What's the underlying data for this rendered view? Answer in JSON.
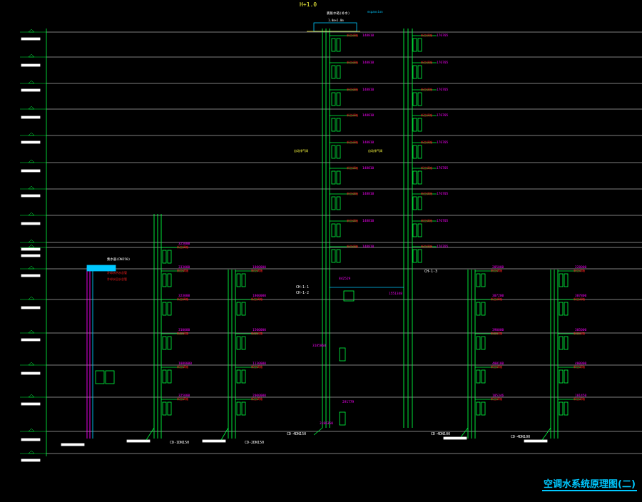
{
  "drawing": {
    "title": "空调水系统原理图(二)",
    "top_mark": "H+1.0",
    "colors": {
      "background": "#000000",
      "floor_line": "#ffffff",
      "pipe": "#00ff40",
      "pipe_alt": "#00c8ff",
      "magenta": "#ff00ff",
      "red": "#ff2020",
      "yellow": "#ffff40",
      "cyan": "#00c8ff"
    }
  },
  "risers": [
    {
      "id": "main-a"
    },
    {
      "id": "main-b"
    },
    {
      "id": "low-1"
    },
    {
      "id": "low-2"
    },
    {
      "id": "low-3"
    },
    {
      "id": "low-4"
    }
  ],
  "labels": {
    "riser_tags": [
      "CH-1-1",
      "CH-1-2",
      "CH-1-3"
    ],
    "bottom_tags": [
      "CD-1DN150",
      "CD-2DN150",
      "CD-4DN150",
      "CD-4DN100",
      "CD-4DN100"
    ],
    "branch_values_left": [
      "325000",
      "333000",
      "323000",
      "310000",
      "1088000"
    ],
    "branch_values_mid": [
      "2000000",
      "1800000",
      "1800000",
      "1500000",
      "1130000"
    ],
    "tower_values": [
      "148810",
      "176705"
    ]
  }
}
